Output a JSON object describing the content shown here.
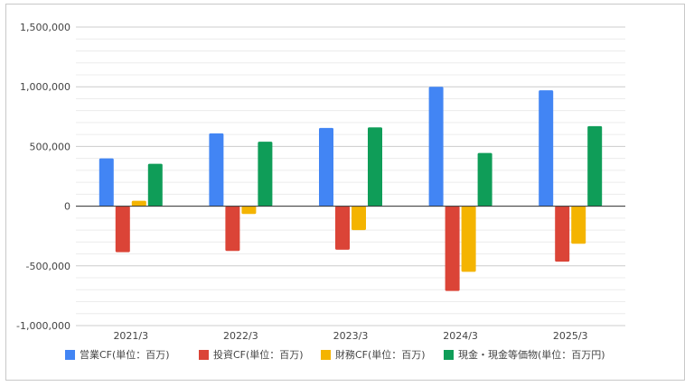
{
  "chart_data": {
    "type": "bar",
    "categories": [
      "2021/3",
      "2022/3",
      "2023/3",
      "2024/3",
      "2025/3"
    ],
    "series": [
      {
        "name": "営業CF(単位：百万)",
        "color": "#4285F4",
        "values": [
          400000,
          610000,
          655000,
          1000000,
          970000
        ]
      },
      {
        "name": "投資CF(単位：百万)",
        "color": "#DB4437",
        "values": [
          -385000,
          -375000,
          -365000,
          -710000,
          -465000
        ]
      },
      {
        "name": "財務CF(単位：百万)",
        "color": "#F4B400",
        "values": [
          45000,
          -65000,
          -200000,
          -550000,
          -315000
        ]
      },
      {
        "name": "現金・現金等価物(単位：百万円)",
        "color": "#0F9D58",
        "values": [
          355000,
          540000,
          660000,
          445000,
          670000
        ]
      }
    ],
    "ylim": [
      -1000000,
      1500000
    ],
    "yticks": [
      -1000000,
      -500000,
      0,
      500000,
      1000000,
      1500000
    ],
    "ytick_labels": [
      "-1,000,000",
      "-500,000",
      "0",
      "500,000",
      "1,000,000",
      "1,500,000"
    ],
    "grid": true,
    "legend_position": "bottom",
    "title": "",
    "xlabel": "",
    "ylabel": ""
  }
}
